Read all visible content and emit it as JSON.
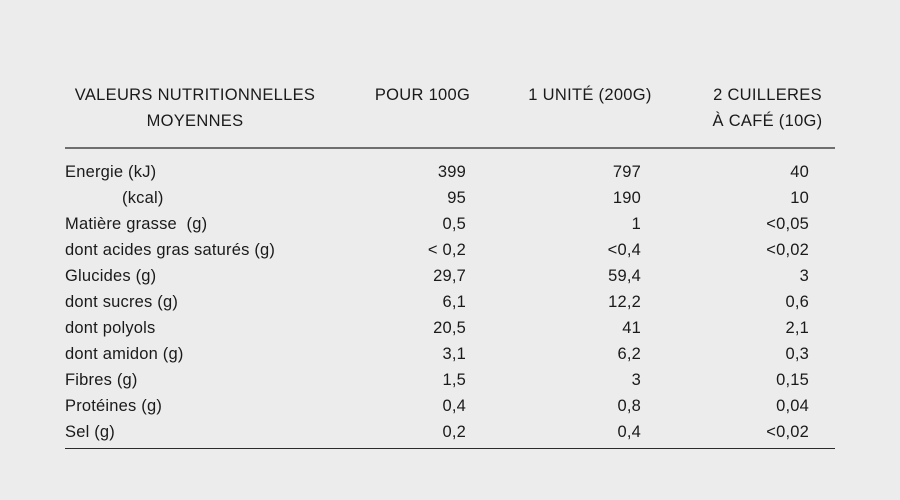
{
  "colors": {
    "background": "#ececec",
    "text": "#1a1a1a",
    "rule_top": "#6f6f6f",
    "rule_bottom": "#2b2b2b"
  },
  "table": {
    "header": {
      "col1_line1": "VALEURS NUTRITIONNELLES",
      "col1_line2": "MOYENNES",
      "col2": "POUR 100G",
      "col3": "1 UNITÉ (200G)",
      "col4_line1": "2 CUILLERES",
      "col4_line2": "À CAFÉ (10G)"
    },
    "rows": [
      {
        "label": "Energie (kJ)",
        "per_100g": "399",
        "per_unit": "797",
        "per_spoons": "40"
      },
      {
        "label": "(kcal)",
        "per_100g": "95",
        "per_unit": "190",
        "per_spoons": "10"
      },
      {
        "label": "Matière grasse  (g)",
        "per_100g": "0,5",
        "per_unit": "1",
        "per_spoons": "<0,05"
      },
      {
        "label": "dont acides gras saturés (g)",
        "per_100g": "< 0,2",
        "per_unit": "<0,4",
        "per_spoons": "<0,02"
      },
      {
        "label": "Glucides (g)",
        "per_100g": "29,7",
        "per_unit": "59,4",
        "per_spoons": "3"
      },
      {
        "label": "dont sucres (g)",
        "per_100g": "6,1",
        "per_unit": "12,2",
        "per_spoons": "0,6"
      },
      {
        "label": "dont polyols",
        "per_100g": "20,5",
        "per_unit": "41",
        "per_spoons": "2,1"
      },
      {
        "label": "dont amidon (g)",
        "per_100g": "3,1",
        "per_unit": "6,2",
        "per_spoons": "0,3"
      },
      {
        "label": "Fibres (g)",
        "per_100g": "1,5",
        "per_unit": "3",
        "per_spoons": "0,15"
      },
      {
        "label": "Protéines (g)",
        "per_100g": "0,4",
        "per_unit": "0,8",
        "per_spoons": "0,04"
      },
      {
        "label": "Sel (g)",
        "per_100g": "0,2",
        "per_unit": "0,4",
        "per_spoons": "<0,02"
      }
    ]
  }
}
